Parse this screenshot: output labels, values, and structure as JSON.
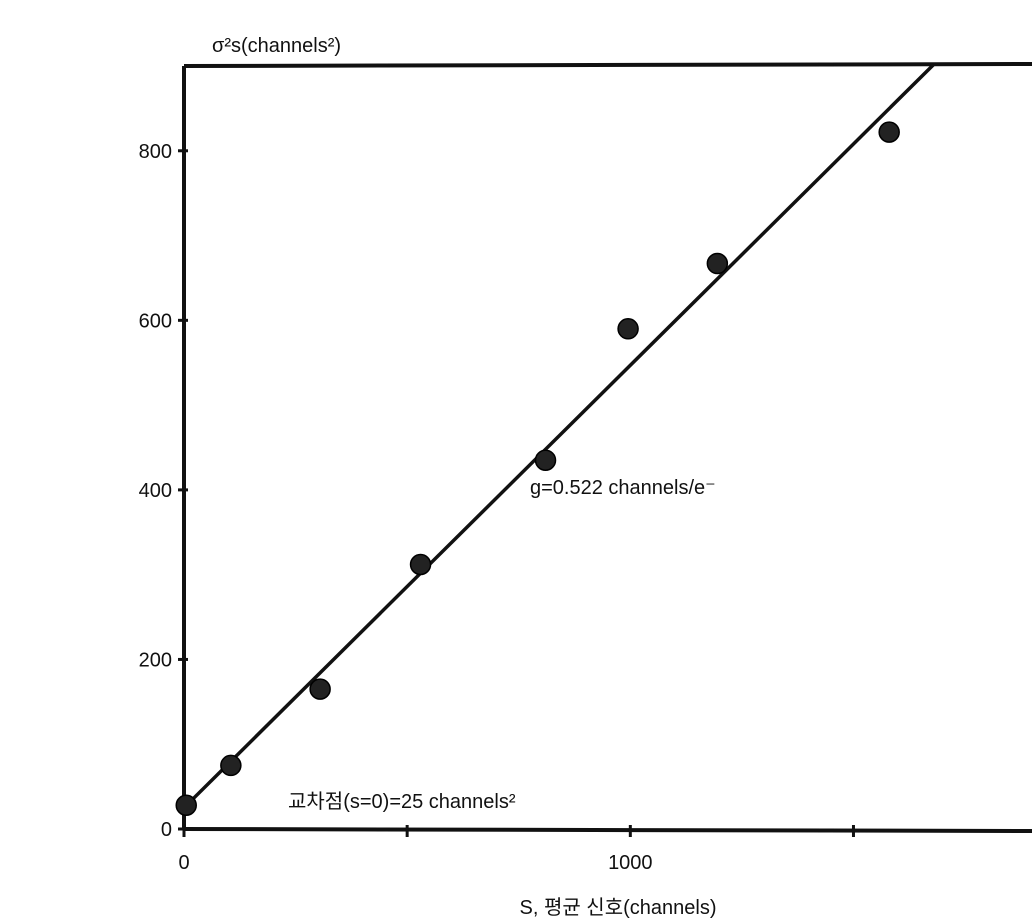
{
  "chart_data": {
    "type": "scatter",
    "ylabel": "σ²s(channels²)",
    "xlabel": "S, 평균 신호(channels)",
    "xlim": [
      0,
      1900
    ],
    "ylim": [
      0,
      900
    ],
    "x_ticks": [
      0,
      500,
      1000,
      1500
    ],
    "x_tick_labels": [
      "0",
      "",
      "1000",
      ""
    ],
    "y_ticks": [
      0,
      200,
      400,
      600,
      800
    ],
    "y_tick_labels": [
      "0",
      "200",
      "400",
      "600",
      "800"
    ],
    "series": [
      {
        "points": [
          {
            "x": 5,
            "y": 28
          },
          {
            "x": 105,
            "y": 75
          },
          {
            "x": 305,
            "y": 165
          },
          {
            "x": 530,
            "y": 312
          },
          {
            "x": 810,
            "y": 435
          },
          {
            "x": 995,
            "y": 590
          },
          {
            "x": 1195,
            "y": 667
          },
          {
            "x": 1580,
            "y": 822
          }
        ]
      }
    ],
    "fit_line": {
      "intercept": 25,
      "slope": 0.522,
      "x_range": [
        0,
        1680
      ]
    },
    "annotations": [
      {
        "text": "g=0.522 channels/e⁻",
        "x": 810,
        "y": 405
      },
      {
        "text": "교차점(s=0)=25 channels²",
        "x": 240,
        "y": 30
      }
    ],
    "grid": false,
    "legend": "none",
    "colors": {
      "ink": "#111111",
      "marker": "#222222",
      "background": "#ffffff"
    }
  }
}
